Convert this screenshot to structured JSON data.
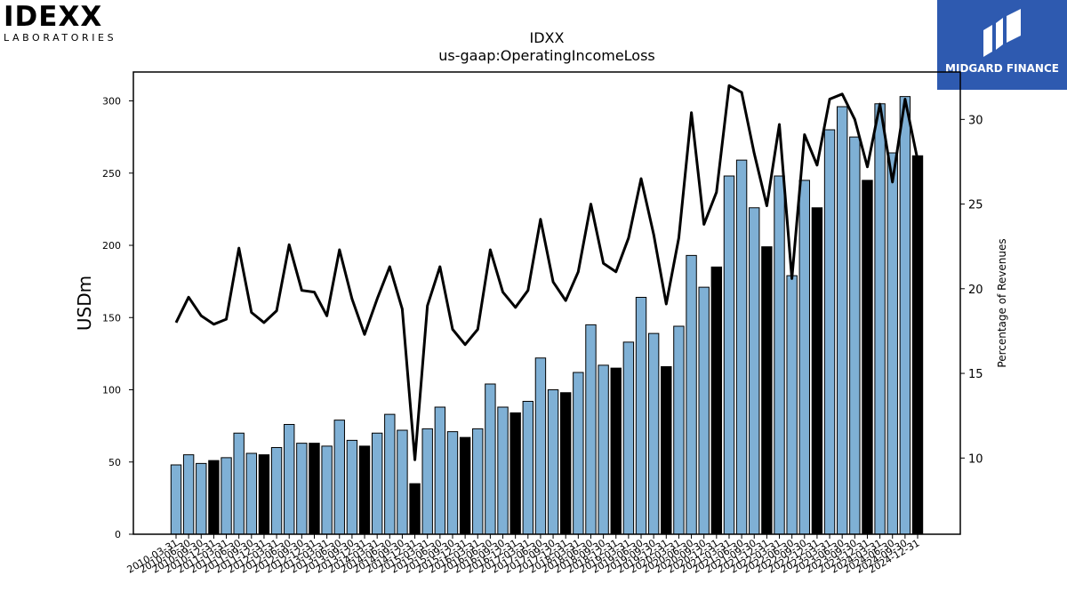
{
  "branding": {
    "left_logo": "IDEXX",
    "left_logo_sub": "LABORATORIES",
    "right_logo": "MIDGARD FINANCE",
    "brand_color": "#2e5ab0"
  },
  "chart_data": {
    "type": "bar",
    "title": "IDXX",
    "subtitle": "us-gaap:OperatingIncomeLoss",
    "ylabel": "USDm",
    "y2label": "Percentage of Revenues",
    "ylim": [
      0,
      320
    ],
    "y2lim": [
      5.5,
      32.8
    ],
    "yticks": [
      0,
      50,
      100,
      150,
      200,
      250,
      300
    ],
    "y2ticks": [
      10,
      15,
      20,
      25,
      30
    ],
    "grid": false,
    "bar_color": "#7fb0d5",
    "highlight_color": "#000000",
    "line_color": "#000000",
    "categories": [
      "2010-03-31",
      "2010-06-30",
      "2010-09-30",
      "2010-12-31",
      "2011-03-31",
      "2011-06-30",
      "2011-09-30",
      "2011-12-31",
      "2012-03-31",
      "2012-06-30",
      "2012-09-30",
      "2012-12-31",
      "2013-03-31",
      "2013-06-30",
      "2013-09-30",
      "2013-12-31",
      "2014-03-31",
      "2014-06-30",
      "2014-09-30",
      "2014-12-31",
      "2015-03-31",
      "2015-06-30",
      "2015-09-30",
      "2015-12-31",
      "2016-03-31",
      "2016-06-30",
      "2016-09-30",
      "2016-12-31",
      "2017-03-31",
      "2017-06-30",
      "2017-09-30",
      "2017-12-31",
      "2018-03-31",
      "2018-06-30",
      "2018-09-30",
      "2018-12-31",
      "2019-03-31",
      "2019-06-30",
      "2019-09-30",
      "2019-12-31",
      "2020-03-31",
      "2020-06-30",
      "2020-09-30",
      "2020-12-31",
      "2021-03-31",
      "2021-06-30",
      "2021-09-30",
      "2021-12-31",
      "2022-03-31",
      "2022-06-30",
      "2022-09-30",
      "2022-12-31",
      "2023-03-31",
      "2023-06-30",
      "2023-09-30",
      "2023-12-31",
      "2024-03-31",
      "2024-06-30",
      "2024-09-30",
      "2024-12-31"
    ],
    "series": [
      {
        "values": [
          48,
          55,
          49,
          51,
          53,
          70,
          56,
          55,
          60,
          76,
          63,
          63,
          61,
          79,
          65,
          61,
          70,
          83,
          72,
          35,
          73,
          88,
          71,
          67,
          73,
          104,
          88,
          84,
          92,
          122,
          100,
          98,
          112,
          145,
          117,
          115,
          133,
          164,
          139,
          116,
          144,
          193,
          171,
          185,
          248,
          259,
          226,
          199,
          248,
          179,
          245,
          226,
          280,
          296,
          275,
          245,
          298,
          264,
          303,
          262
        ],
        "highlight": [
          false,
          false,
          false,
          true,
          false,
          false,
          false,
          true,
          false,
          false,
          false,
          true,
          false,
          false,
          false,
          true,
          false,
          false,
          false,
          true,
          false,
          false,
          false,
          true,
          false,
          false,
          false,
          true,
          false,
          false,
          false,
          true,
          false,
          false,
          false,
          true,
          false,
          false,
          false,
          true,
          false,
          false,
          false,
          true,
          false,
          false,
          false,
          true,
          false,
          false,
          false,
          true,
          false,
          false,
          false,
          true,
          false,
          false,
          false,
          true
        ]
      },
      {
        "axis": "right",
        "values": [
          18.0,
          19.5,
          18.4,
          17.9,
          18.2,
          22.4,
          18.6,
          18.0,
          18.7,
          22.6,
          19.9,
          19.8,
          18.4,
          22.3,
          19.4,
          17.3,
          19.4,
          21.3,
          18.8,
          9.9,
          19.0,
          21.3,
          17.6,
          16.7,
          17.6,
          22.3,
          19.8,
          18.9,
          19.9,
          24.1,
          20.4,
          19.3,
          21.0,
          25.0,
          21.5,
          21.0,
          23.0,
          26.5,
          23.2,
          19.1,
          23.0,
          30.4,
          23.8,
          25.7,
          32.0,
          31.6,
          28.0,
          24.9,
          29.7,
          20.6,
          29.1,
          27.3,
          31.2,
          31.5,
          30.0,
          27.2,
          30.9,
          26.3,
          31.2,
          27.6
        ]
      }
    ]
  }
}
